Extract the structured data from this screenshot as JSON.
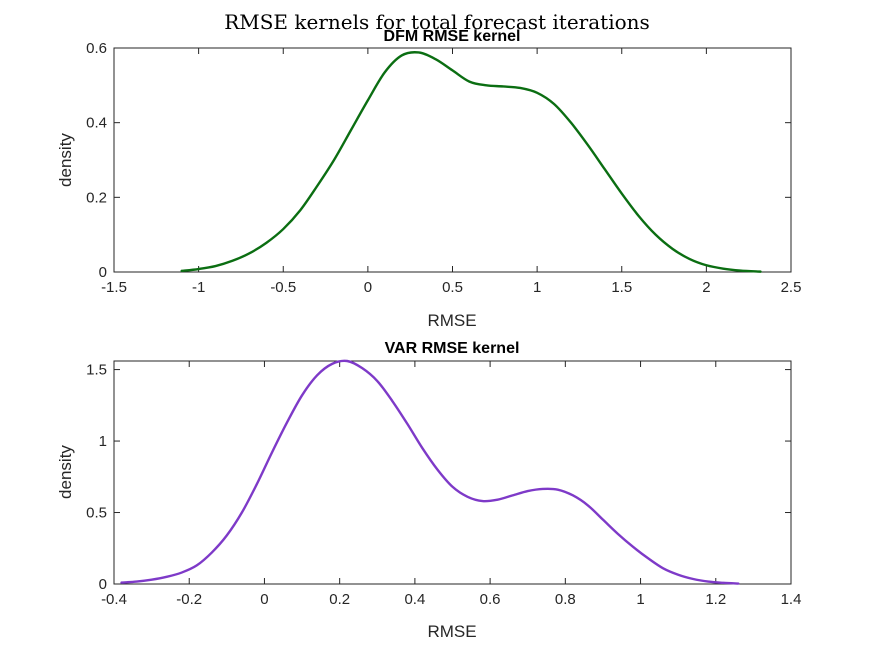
{
  "figure_title": "RMSE kernels for total forecast iterations",
  "chart_data": [
    {
      "type": "line",
      "title": "DFM RMSE kernel",
      "xlabel": "RMSE",
      "ylabel": "density",
      "xlim": [
        -1.5,
        2.5
      ],
      "ylim": [
        0,
        0.6
      ],
      "xticks": [
        "-1.5",
        "-1",
        "-0.5",
        "0",
        "0.5",
        "1",
        "1.5",
        "2",
        "2.5"
      ],
      "yticks": [
        "0",
        "0.2",
        "0.4",
        "0.6"
      ],
      "grid": false,
      "color": "#0b6e12",
      "series": [
        {
          "x": [
            -1.1,
            -1.0,
            -0.9,
            -0.8,
            -0.7,
            -0.6,
            -0.5,
            -0.4,
            -0.3,
            -0.2,
            -0.1,
            0.0,
            0.1,
            0.2,
            0.3,
            0.4,
            0.5,
            0.6,
            0.7,
            0.8,
            0.9,
            1.0,
            1.1,
            1.2,
            1.3,
            1.4,
            1.5,
            1.6,
            1.7,
            1.8,
            1.9,
            2.0,
            2.1,
            2.2,
            2.32
          ],
          "y": [
            0.003,
            0.008,
            0.016,
            0.03,
            0.05,
            0.078,
            0.115,
            0.165,
            0.23,
            0.3,
            0.38,
            0.46,
            0.535,
            0.58,
            0.588,
            0.57,
            0.54,
            0.51,
            0.5,
            0.497,
            0.493,
            0.48,
            0.45,
            0.4,
            0.34,
            0.275,
            0.21,
            0.15,
            0.1,
            0.062,
            0.035,
            0.018,
            0.009,
            0.004,
            0.001
          ]
        }
      ]
    },
    {
      "type": "line",
      "title": "VAR RMSE kernel",
      "xlabel": "RMSE",
      "ylabel": "density",
      "xlim": [
        -0.4,
        1.4
      ],
      "ylim": [
        0,
        1.56
      ],
      "xticks": [
        "-0.4",
        "-0.2",
        "0",
        "0.2",
        "0.4",
        "0.6",
        "0.8",
        "1",
        "1.2",
        "1.4"
      ],
      "yticks": [
        "0",
        "0.5",
        "1",
        "1.5"
      ],
      "ytick_values": [
        0,
        0.5,
        1,
        1.5
      ],
      "xtick_values": [
        -0.4,
        -0.2,
        0,
        0.2,
        0.4,
        0.6,
        0.8,
        1,
        1.2,
        1.4
      ],
      "grid": false,
      "color": "#7e3ac8",
      "series": [
        {
          "x": [
            -0.38,
            -0.34,
            -0.3,
            -0.26,
            -0.22,
            -0.18,
            -0.14,
            -0.1,
            -0.06,
            -0.02,
            0.02,
            0.06,
            0.1,
            0.14,
            0.18,
            0.22,
            0.26,
            0.3,
            0.34,
            0.38,
            0.42,
            0.46,
            0.5,
            0.54,
            0.58,
            0.62,
            0.66,
            0.7,
            0.74,
            0.78,
            0.82,
            0.86,
            0.9,
            0.94,
            0.98,
            1.02,
            1.06,
            1.1,
            1.14,
            1.18,
            1.22,
            1.26
          ],
          "y": [
            0.01,
            0.017,
            0.03,
            0.05,
            0.08,
            0.13,
            0.22,
            0.34,
            0.5,
            0.7,
            0.92,
            1.13,
            1.32,
            1.46,
            1.54,
            1.56,
            1.51,
            1.42,
            1.28,
            1.12,
            0.95,
            0.8,
            0.68,
            0.61,
            0.58,
            0.59,
            0.62,
            0.65,
            0.665,
            0.66,
            0.62,
            0.55,
            0.45,
            0.35,
            0.26,
            0.18,
            0.11,
            0.065,
            0.035,
            0.017,
            0.008,
            0.003
          ]
        }
      ]
    }
  ]
}
